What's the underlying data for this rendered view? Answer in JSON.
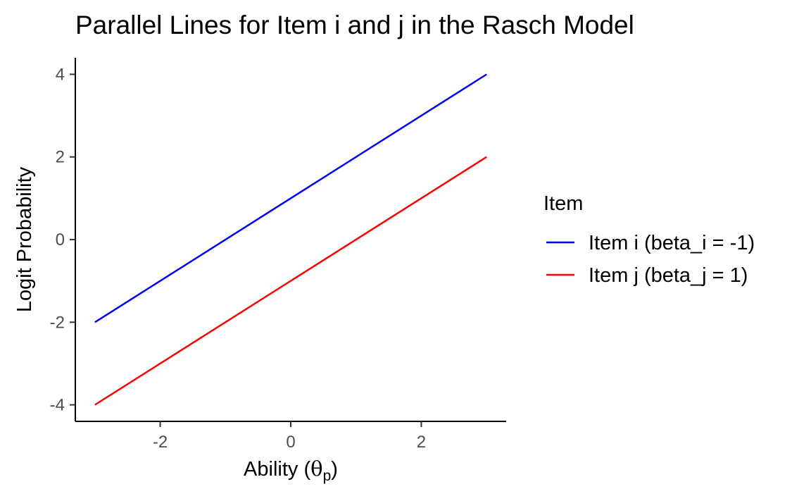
{
  "chart_data": {
    "type": "line",
    "title": "Parallel Lines for Item i and j in the Rasch Model",
    "xlabel": "Ability (",
    "xlabel_symbol": "θ",
    "xlabel_subscript": "p",
    "xlabel_suffix": ")",
    "ylabel": "Logit Probability",
    "xlim": [
      -3.3,
      3.3
    ],
    "ylim": [
      -4.4,
      4.4
    ],
    "x_ticks": [
      -2,
      0,
      2
    ],
    "y_ticks": [
      -4,
      -2,
      0,
      2,
      4
    ],
    "x_tick_labels": [
      "-2",
      "0",
      "2"
    ],
    "y_tick_labels": [
      "-4",
      "-2",
      "0",
      "2",
      "4"
    ],
    "grid": false,
    "legend_placement": "right",
    "legend_title": "Item",
    "series": [
      {
        "name": "Item i (beta_i = -1)",
        "color": "#0000ff",
        "x": [
          -3,
          3
        ],
        "y": [
          -2,
          4
        ]
      },
      {
        "name": "Item j (beta_j = 1)",
        "color": "#ff0000",
        "x": [
          -3,
          3
        ],
        "y": [
          -4,
          2
        ]
      }
    ]
  }
}
